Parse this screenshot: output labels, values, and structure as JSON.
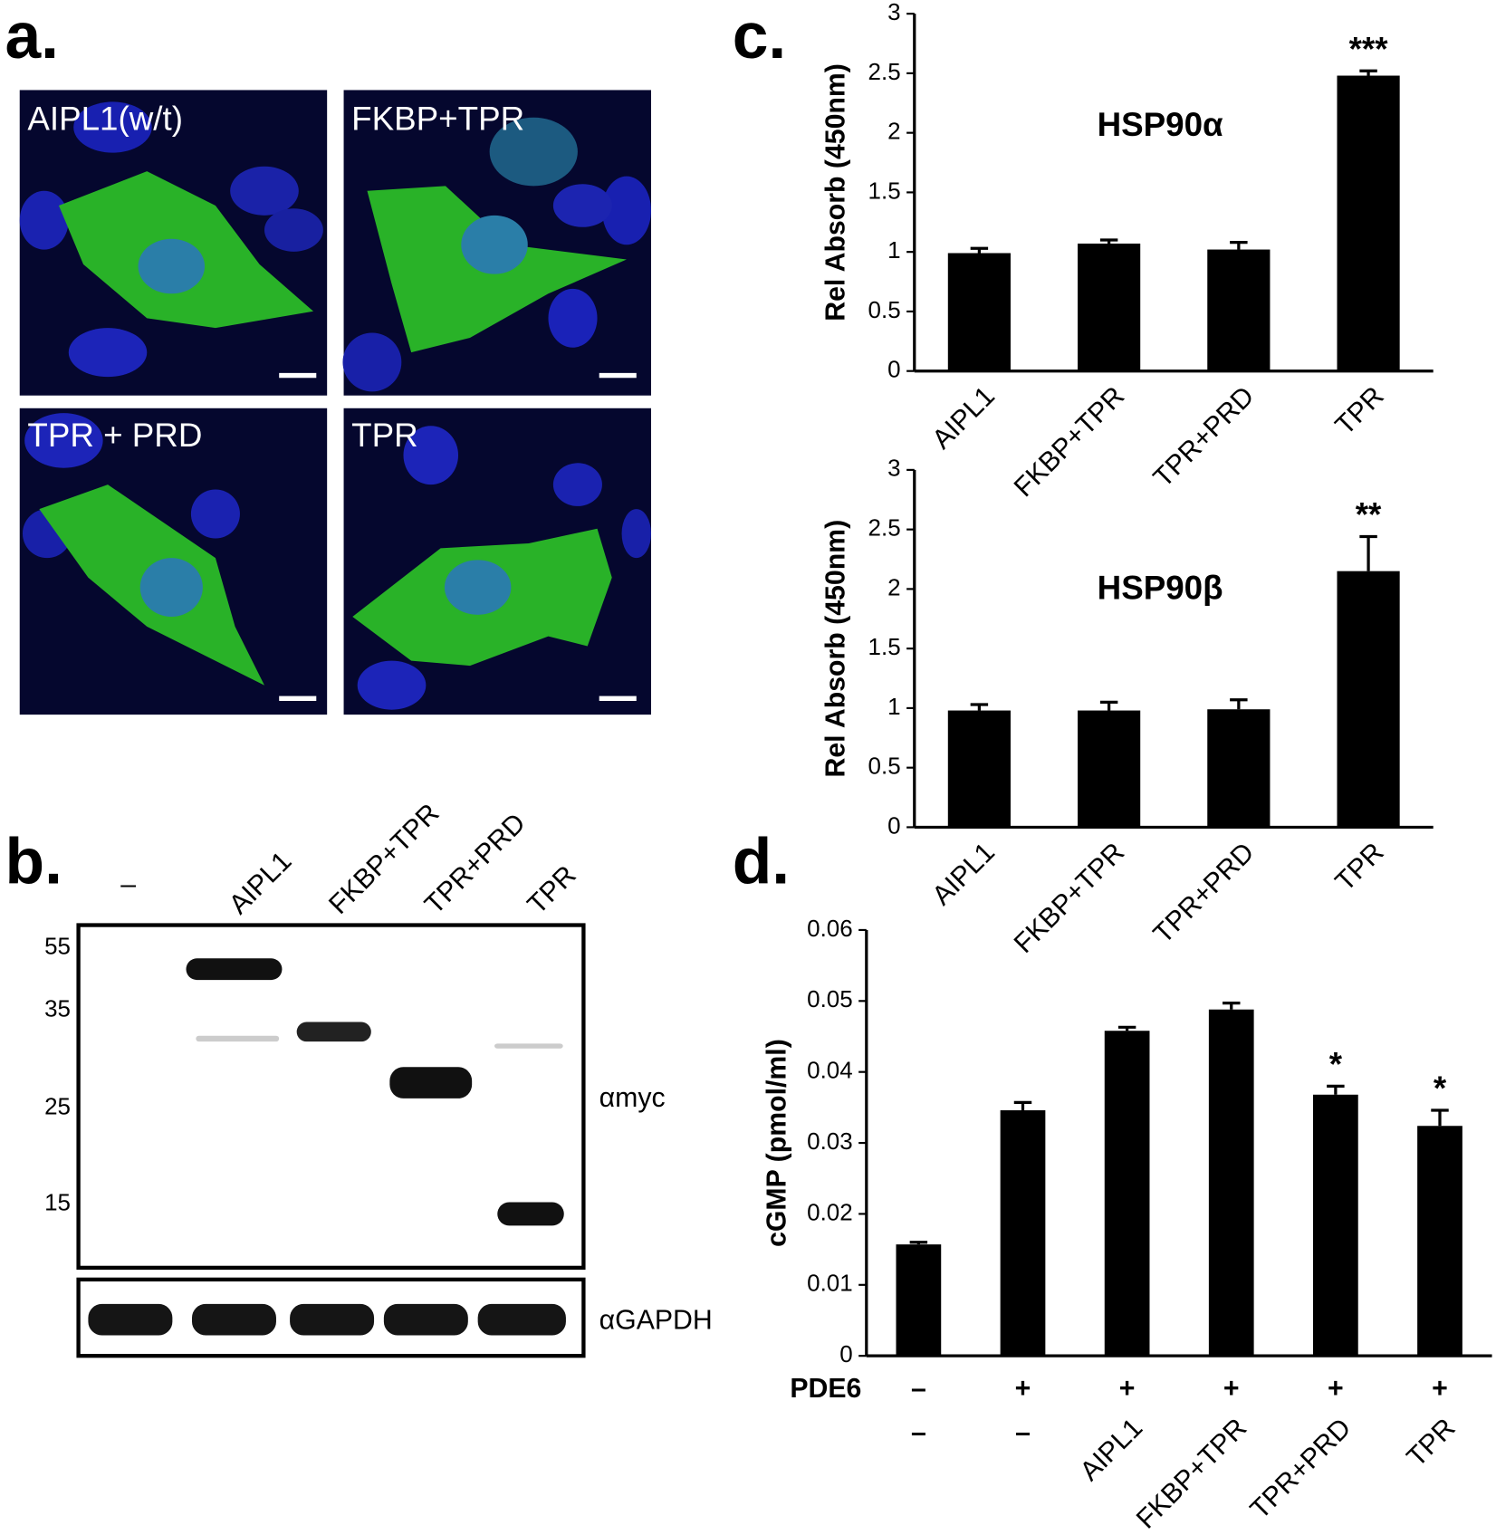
{
  "panel_labels": [
    "a.",
    "b.",
    "c.",
    "d."
  ],
  "microscopy": {
    "labels": [
      "AIPL1(w/t)",
      "FKBP+TPR",
      "TPR + PRD",
      "TPR"
    ]
  },
  "blot": {
    "lanes": [
      "–",
      "AIPL1",
      "FKBP+TPR",
      "TPR+PRD",
      "TPR"
    ],
    "markers": [
      55,
      35,
      25,
      15
    ],
    "antibodies": [
      "αmyc",
      "αGAPDH"
    ]
  },
  "chart_data": [
    {
      "type": "bar",
      "title": "HSP90α",
      "y_label": "Rel Absorb (450nm)",
      "categories": [
        "AIPL1",
        "FKBP+TPR",
        "TPR+PRD",
        "TPR"
      ],
      "values": [
        0.99,
        1.07,
        1.02,
        2.48
      ],
      "errors": [
        0.04,
        0.03,
        0.06,
        0.04
      ],
      "significance": [
        null,
        null,
        null,
        "***"
      ],
      "color": "#000000",
      "ylim": [
        0,
        3
      ],
      "yticks": [
        0,
        0.5,
        1,
        1.5,
        2,
        2.5,
        3
      ]
    },
    {
      "type": "bar",
      "title": "HSP90β",
      "y_label": "Rel Absorb (450nm)",
      "categories": [
        "AIPL1",
        "FKBP+TPR",
        "TPR+PRD",
        "TPR"
      ],
      "values": [
        0.98,
        0.98,
        0.99,
        2.15
      ],
      "errors": [
        0.05,
        0.07,
        0.08,
        0.29
      ],
      "significance": [
        null,
        null,
        null,
        "**"
      ],
      "color": "#000000",
      "ylim": [
        0,
        3
      ],
      "yticks": [
        0,
        0.5,
        1,
        1.5,
        2,
        2.5,
        3
      ]
    },
    {
      "type": "bar",
      "y_label": "cGMP (pmol/ml)",
      "row_label": "PDE6",
      "row": [
        "–",
        "+",
        "+",
        "+",
        "+",
        "+"
      ],
      "categories": [
        "–",
        "–",
        "AIPL1",
        "FKBP+TPR",
        "TPR+PRD",
        "TPR"
      ],
      "values": [
        0.0157,
        0.0346,
        0.0458,
        0.0488,
        0.0368,
        0.0324
      ],
      "errors": [
        0.0003,
        0.0011,
        0.0005,
        0.0009,
        0.0012,
        0.0022
      ],
      "significance": [
        null,
        null,
        null,
        null,
        "*",
        "*"
      ],
      "color": "#000000",
      "ylim": [
        0,
        0.06
      ],
      "yticks": [
        0,
        0.01,
        0.02,
        0.03,
        0.04,
        0.05,
        0.06
      ]
    }
  ]
}
